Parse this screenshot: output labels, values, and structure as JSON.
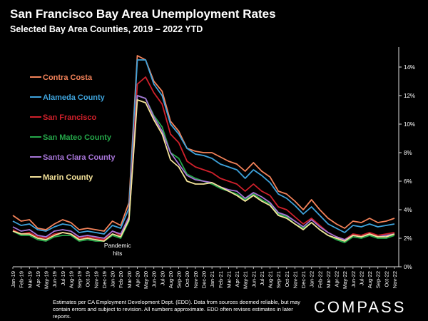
{
  "header": {
    "title": "San Francisco Bay Area Unemployment Rates",
    "subtitle": "Selected Bay Area Counties, 2019 – 2022 YTD"
  },
  "footer": {
    "note": "Estimates per CA Employment Development Dept. (EDD). Data from sources deemed reliable, but may contain errors and subject to revision. All numbers approximate. EDD often revises estimates in later reports.",
    "brand": "COMPASS"
  },
  "chart_data": {
    "type": "line",
    "title": "San Francisco Bay Area Unemployment Rates",
    "subtitle": "Selected Bay Area Counties, 2019 – 2022 YTD",
    "xlabel": "",
    "ylabel": "",
    "ylim": [
      0,
      15
    ],
    "yticks": [
      0,
      2,
      4,
      6,
      8,
      10,
      12,
      14
    ],
    "ytick_labels": [
      "0%",
      "2%",
      "4%",
      "6%",
      "8%",
      "10%",
      "12%",
      "14%"
    ],
    "grid": false,
    "legend_position": "left",
    "x": [
      "Jan-19",
      "Feb-19",
      "Mar-19",
      "Apr-19",
      "May-19",
      "Jun-19",
      "Jul-19",
      "Aug-19",
      "Sep-19",
      "Oct-19",
      "Nov-19",
      "Dec-19",
      "Jan-20",
      "Feb-20",
      "Mar-20",
      "Apr-20",
      "May-20",
      "Jun-20",
      "Jul-20",
      "Aug-20",
      "Sep-20",
      "Oct-20",
      "Nov-20",
      "Dec-20",
      "Jan-21",
      "Feb-21",
      "Mar-21",
      "Apr-21",
      "May-21",
      "Jun-21",
      "Jul-21",
      "Aug-21",
      "Sep-21",
      "Oct-21",
      "Nov-21",
      "Dec-21",
      "Jan-22",
      "Feb-22",
      "Mar-22",
      "Apr-22",
      "May-22",
      "Jun-22",
      "Jul-22",
      "Aug-22",
      "Sep-22",
      "Oct-22",
      "Nov-22"
    ],
    "x_tick_labels": [
      "Jan-19",
      "Feb-19",
      "Mar-19",
      "Apr-19",
      "May-19",
      "Jun-19",
      "Jul-19",
      "Aug-19",
      "Sep-19",
      "Oct-19",
      "Nov-19",
      "Dec-19",
      "Jan-20",
      "Feb-20",
      "Mar-20",
      "Apr-20",
      "May-20",
      "Jun-20",
      "Jul-20",
      "Aug-20",
      "Sep-20",
      "Oct-20",
      "Nov-20",
      "Dec-20",
      "Jan-21",
      "Feb-21",
      "Mar-21",
      "Apr-21",
      "May-21",
      "Jun-21",
      "Jul-21",
      "Aug-21",
      "Sep-21",
      "Oct-21",
      "Nov-21",
      "Dec-21",
      "Jan-22",
      "Feb-22",
      "Mar-22",
      "Apr-22",
      "May-22",
      "Jun-22",
      "Jul-22",
      "Aug-22",
      "Sep-22",
      "Oct-22",
      "Nov-22"
    ],
    "series": [
      {
        "name": "Contra Costa",
        "color": "#f4835a",
        "values": [
          3.6,
          3.2,
          3.3,
          2.7,
          2.6,
          3.0,
          3.3,
          3.1,
          2.6,
          2.7,
          2.6,
          2.5,
          3.2,
          2.9,
          4.5,
          14.8,
          14.5,
          13.0,
          12.3,
          10.2,
          9.5,
          8.3,
          8.1,
          8.0,
          8.0,
          7.7,
          7.4,
          7.2,
          6.7,
          7.3,
          6.7,
          6.3,
          5.3,
          5.1,
          4.6,
          4.0,
          4.7,
          4.0,
          3.4,
          3.0,
          2.7,
          3.2,
          3.1,
          3.4,
          3.1,
          3.2,
          3.4
        ]
      },
      {
        "name": "Alameda County",
        "color": "#3ea3dc",
        "values": [
          3.2,
          2.9,
          3.0,
          2.6,
          2.5,
          2.8,
          3.0,
          2.9,
          2.4,
          2.5,
          2.4,
          2.3,
          2.9,
          2.7,
          4.1,
          14.5,
          14.5,
          12.8,
          12.0,
          10.0,
          9.3,
          8.3,
          7.9,
          7.8,
          7.6,
          7.2,
          7.0,
          6.8,
          6.2,
          6.8,
          6.4,
          5.9,
          5.1,
          4.8,
          4.3,
          3.7,
          4.2,
          3.6,
          3.0,
          2.7,
          2.4,
          2.9,
          2.8,
          3.0,
          2.8,
          2.9,
          3.0
        ]
      },
      {
        "name": "San Francisco",
        "color": "#d0202b",
        "values": [
          2.6,
          2.3,
          2.4,
          2.1,
          2.0,
          2.3,
          2.4,
          2.3,
          2.0,
          2.1,
          2.0,
          1.9,
          2.5,
          2.2,
          3.5,
          12.8,
          13.3,
          12.2,
          11.4,
          9.3,
          8.7,
          7.4,
          7.0,
          6.8,
          6.6,
          6.2,
          6.0,
          5.8,
          5.3,
          5.8,
          5.3,
          5.0,
          4.2,
          4.0,
          3.5,
          3.0,
          3.4,
          2.9,
          2.4,
          2.1,
          1.9,
          2.3,
          2.2,
          2.4,
          2.2,
          2.3,
          2.4
        ]
      },
      {
        "name": "San Mateo County",
        "color": "#25a84a",
        "values": [
          2.5,
          2.2,
          2.2,
          1.9,
          1.8,
          2.1,
          2.2,
          2.2,
          1.8,
          1.9,
          1.8,
          1.8,
          2.2,
          2.0,
          3.2,
          12.0,
          11.8,
          10.6,
          9.8,
          8.0,
          7.6,
          6.5,
          6.2,
          6.0,
          5.8,
          5.5,
          5.3,
          5.1,
          4.7,
          5.1,
          4.7,
          4.4,
          3.7,
          3.5,
          3.0,
          2.7,
          3.1,
          2.6,
          2.2,
          1.9,
          1.7,
          2.1,
          2.0,
          2.2,
          2.0,
          2.0,
          2.2
        ]
      },
      {
        "name": "Santa Clara County",
        "color": "#a775d8",
        "values": [
          2.8,
          2.5,
          2.6,
          2.2,
          2.1,
          2.5,
          2.6,
          2.5,
          2.1,
          2.2,
          2.1,
          2.0,
          2.5,
          2.3,
          3.5,
          12.0,
          11.8,
          10.5,
          9.5,
          8.0,
          7.2,
          6.4,
          6.1,
          6.0,
          5.9,
          5.6,
          5.4,
          5.3,
          4.8,
          5.2,
          4.9,
          4.5,
          3.8,
          3.6,
          3.2,
          2.8,
          3.3,
          2.8,
          2.4,
          2.1,
          1.9,
          2.2,
          2.1,
          2.3,
          2.1,
          2.2,
          2.3
        ]
      },
      {
        "name": "Marin County",
        "color": "#f5e39a",
        "values": [
          2.5,
          2.3,
          2.3,
          2.0,
          1.9,
          2.2,
          2.4,
          2.3,
          1.9,
          2.0,
          1.9,
          1.8,
          2.3,
          2.1,
          3.3,
          11.7,
          11.5,
          10.3,
          9.3,
          7.5,
          7.0,
          6.0,
          5.8,
          5.8,
          5.9,
          5.6,
          5.3,
          5.0,
          4.6,
          5.0,
          4.6,
          4.3,
          3.6,
          3.4,
          3.0,
          2.6,
          3.1,
          2.6,
          2.2,
          2.0,
          1.8,
          2.2,
          2.1,
          2.3,
          2.1,
          2.1,
          2.3
        ]
      }
    ],
    "annotations": [
      {
        "text": "Pandemic",
        "at": "Mar-20"
      },
      {
        "text": "hits",
        "at": "Mar-20"
      }
    ]
  }
}
